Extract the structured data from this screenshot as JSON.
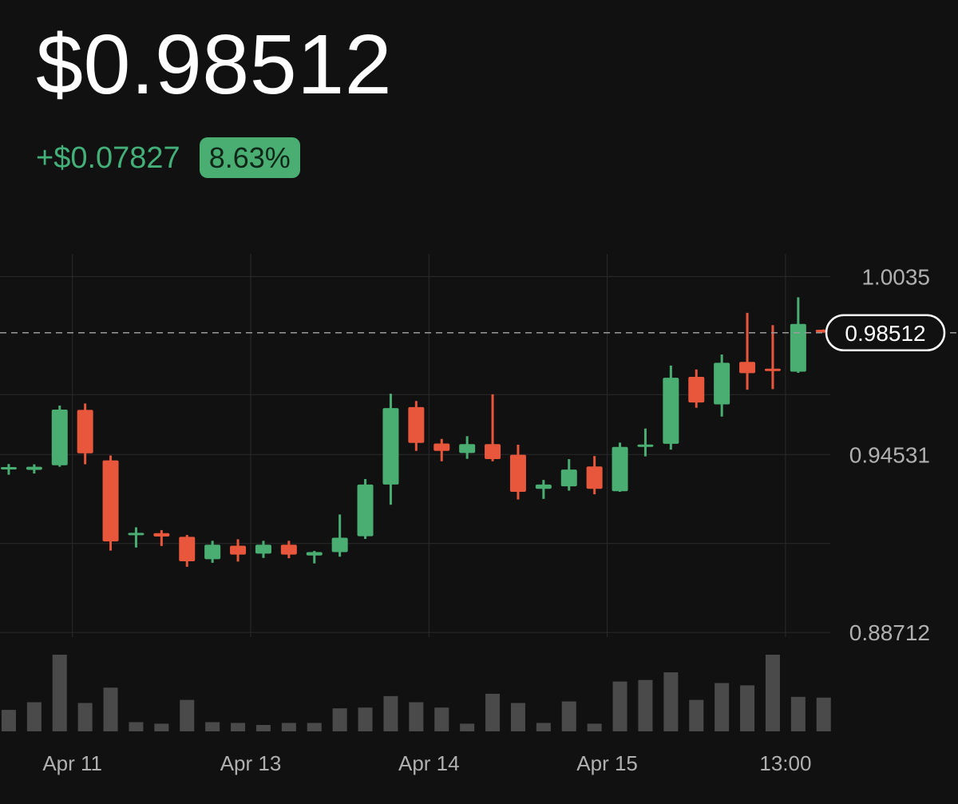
{
  "header": {
    "price": "$0.98512",
    "change_abs": "+$0.07827",
    "change_pct": "8.63%"
  },
  "colors": {
    "background": "#111111",
    "up": "#4AAE73",
    "down": "#E8573B",
    "volume": "#4A4A4A",
    "grid": "#2B2B2B",
    "text": "#FFFFFF",
    "axis_text": "#B0B0B0"
  },
  "chart_data": {
    "type": "candlestick",
    "current_price_label": "0.98512",
    "current_price": 0.98512,
    "y_ticks": [
      "1.0035",
      "0.94531",
      "0.88712"
    ],
    "y_tick_values": [
      1.0035,
      0.94531,
      0.88712
    ],
    "ylim": [
      0.8856,
      1.0109
    ],
    "x_tick_labels": [
      "Apr 11",
      "Apr 13",
      "Apr 14",
      "Apr 15",
      "13:00"
    ],
    "x_tick_index": [
      2.5,
      9.5,
      16.5,
      23.5,
      30.5
    ],
    "grid": true,
    "volume_ylim": [
      0,
      100
    ],
    "candles": [
      {
        "o": 0.9408,
        "h": 0.9422,
        "l": 0.9387,
        "c": 0.9408,
        "v": 28
      },
      {
        "o": 0.9403,
        "h": 0.9421,
        "l": 0.9391,
        "c": 0.9413,
        "v": 38
      },
      {
        "o": 0.9418,
        "h": 0.9613,
        "l": 0.9413,
        "c": 0.96,
        "v": 100
      },
      {
        "o": 0.9599,
        "h": 0.962,
        "l": 0.9421,
        "c": 0.9457,
        "v": 37
      },
      {
        "o": 0.9434,
        "h": 0.945,
        "l": 0.9139,
        "c": 0.9169,
        "v": 57
      },
      {
        "o": 0.9193,
        "h": 0.9215,
        "l": 0.9149,
        "c": 0.9193,
        "v": 12
      },
      {
        "o": 0.9196,
        "h": 0.9206,
        "l": 0.9154,
        "c": 0.9185,
        "v": 10
      },
      {
        "o": 0.9184,
        "h": 0.919,
        "l": 0.9086,
        "c": 0.9104,
        "v": 41
      },
      {
        "o": 0.9111,
        "h": 0.9171,
        "l": 0.9099,
        "c": 0.9158,
        "v": 12
      },
      {
        "o": 0.9155,
        "h": 0.9176,
        "l": 0.9103,
        "c": 0.9126,
        "v": 11
      },
      {
        "o": 0.9129,
        "h": 0.9171,
        "l": 0.9115,
        "c": 0.9158,
        "v": 4
      },
      {
        "o": 0.9158,
        "h": 0.9171,
        "l": 0.9114,
        "c": 0.9126,
        "v": 11
      },
      {
        "o": 0.9123,
        "h": 0.9138,
        "l": 0.9097,
        "c": 0.9134,
        "v": 11
      },
      {
        "o": 0.9134,
        "h": 0.9257,
        "l": 0.9119,
        "c": 0.9181,
        "v": 30
      },
      {
        "o": 0.9186,
        "h": 0.9373,
        "l": 0.9177,
        "c": 0.9355,
        "v": 31
      },
      {
        "o": 0.9355,
        "h": 0.9652,
        "l": 0.9289,
        "c": 0.9605,
        "v": 46
      },
      {
        "o": 0.9608,
        "h": 0.9628,
        "l": 0.9465,
        "c": 0.9491,
        "v": 38
      },
      {
        "o": 0.9489,
        "h": 0.9504,
        "l": 0.9431,
        "c": 0.9465,
        "v": 31
      },
      {
        "o": 0.9458,
        "h": 0.9513,
        "l": 0.9439,
        "c": 0.9487,
        "v": 10
      },
      {
        "o": 0.9487,
        "h": 0.965,
        "l": 0.9431,
        "c": 0.9438,
        "v": 49
      },
      {
        "o": 0.9452,
        "h": 0.9485,
        "l": 0.9306,
        "c": 0.9331,
        "v": 37
      },
      {
        "o": 0.9341,
        "h": 0.937,
        "l": 0.9308,
        "c": 0.9355,
        "v": 11
      },
      {
        "o": 0.9349,
        "h": 0.9438,
        "l": 0.9335,
        "c": 0.9404,
        "v": 39
      },
      {
        "o": 0.9414,
        "h": 0.9448,
        "l": 0.9323,
        "c": 0.9341,
        "v": 10
      },
      {
        "o": 0.9333,
        "h": 0.9492,
        "l": 0.9331,
        "c": 0.9478,
        "v": 65
      },
      {
        "o": 0.9481,
        "h": 0.9538,
        "l": 0.9447,
        "c": 0.9482,
        "v": 67
      },
      {
        "o": 0.9488,
        "h": 0.9744,
        "l": 0.9469,
        "c": 0.9704,
        "v": 77
      },
      {
        "o": 0.9707,
        "h": 0.9731,
        "l": 0.9606,
        "c": 0.9623,
        "v": 41
      },
      {
        "o": 0.9617,
        "h": 0.978,
        "l": 0.9577,
        "c": 0.9753,
        "v": 63
      },
      {
        "o": 0.9756,
        "h": 0.9916,
        "l": 0.9665,
        "c": 0.9719,
        "v": 60
      },
      {
        "o": 0.973,
        "h": 0.9876,
        "l": 0.9667,
        "c": 0.9724,
        "v": 100
      },
      {
        "o": 0.9724,
        "h": 0.9967,
        "l": 0.972,
        "c": 0.988,
        "v": 45
      },
      {
        "o": 0.9857,
        "h": 0.9862,
        "l": 0.9851,
        "c": 0.9851,
        "v": 44
      }
    ]
  }
}
